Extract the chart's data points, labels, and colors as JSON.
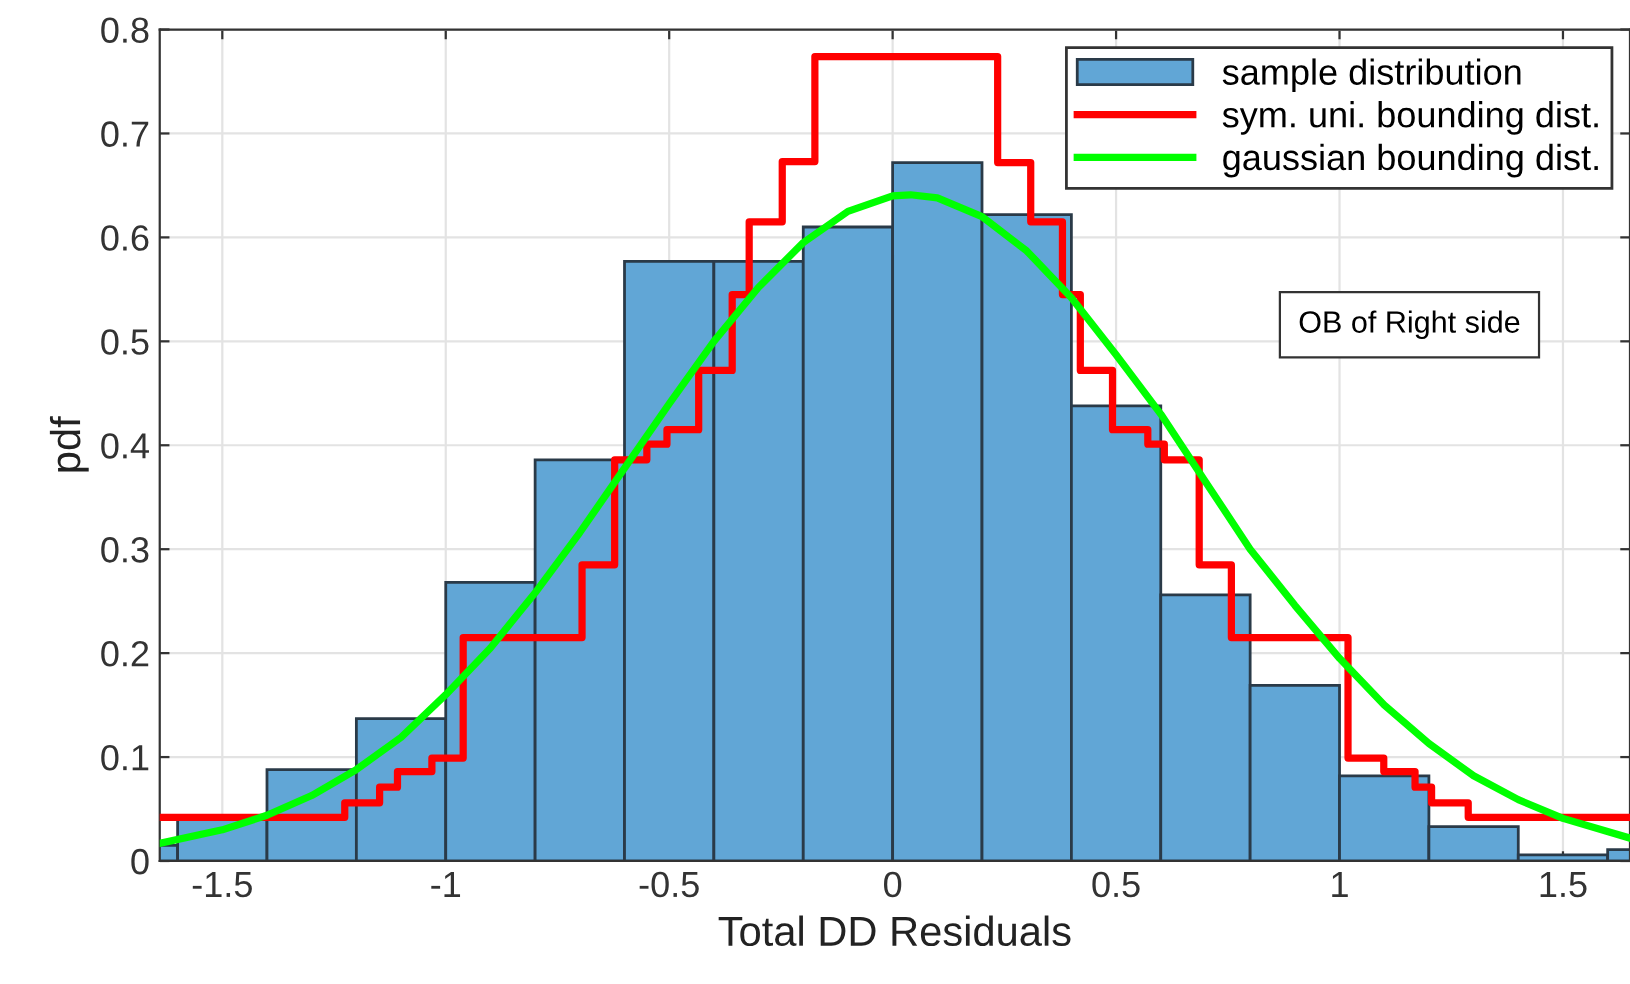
{
  "chart_data": {
    "type": "histogram",
    "xlabel": "Total DD Residuals",
    "ylabel": "pdf",
    "bins": [
      -1.8,
      -1.6,
      -1.4,
      -1.2,
      -1.0,
      -0.8,
      -0.6,
      -0.4,
      -0.2,
      0,
      0.2,
      0.4,
      0.6,
      0.8,
      1.0,
      1.2,
      1.4,
      1.6,
      1.8
    ],
    "series": [
      {
        "name": "sample distribution",
        "color": "#61a6d6",
        "values": [
          0.015,
          0.04,
          0.088,
          0.137,
          0.268,
          0.386,
          0.577,
          0.577,
          0.61,
          0.672,
          0.622,
          0.438,
          0.256,
          0.169,
          0.082,
          0.033,
          0.006,
          0.011
        ]
      },
      {
        "name": "sym. uni. bounding dist.",
        "type": "step",
        "color": "#ff0000",
        "x": [
          -1.64,
          -1.226,
          -1.148,
          -1.108,
          -1.031,
          -0.961,
          -0.695,
          -0.622,
          -0.55,
          -0.505,
          -0.434,
          -0.359,
          -0.321,
          -0.247,
          -0.174,
          0.235,
          0.309,
          0.38,
          0.42,
          0.492,
          0.571,
          0.608,
          0.686,
          0.758,
          1.019,
          1.099,
          1.169,
          1.206,
          1.288,
          1.65
        ],
        "values": [
          0.042,
          0.056,
          0.071,
          0.086,
          0.099,
          0.215,
          0.285,
          0.386,
          0.401,
          0.415,
          0.472,
          0.545,
          0.615,
          0.673,
          0.774,
          0.672,
          0.615,
          0.545,
          0.472,
          0.415,
          0.401,
          0.386,
          0.285,
          0.215,
          0.099,
          0.086,
          0.071,
          0.056,
          0.042,
          0.042
        ]
      },
      {
        "name": "gaussian bounding dist.",
        "type": "line",
        "color": "#00ff00",
        "x": [
          -1.64,
          -1.5,
          -1.4,
          -1.3,
          -1.2,
          -1.1,
          -1.0,
          -0.9,
          -0.8,
          -0.7,
          -0.6,
          -0.5,
          -0.4,
          -0.3,
          -0.2,
          -0.1,
          0.0,
          0.04,
          0.1,
          0.2,
          0.3,
          0.4,
          0.5,
          0.6,
          0.7,
          0.8,
          0.9,
          1.0,
          1.1,
          1.2,
          1.3,
          1.4,
          1.5,
          1.65
        ],
        "values": [
          0.017,
          0.03,
          0.044,
          0.063,
          0.088,
          0.119,
          0.16,
          0.205,
          0.258,
          0.316,
          0.378,
          0.44,
          0.5,
          0.552,
          0.595,
          0.625,
          0.64,
          0.641,
          0.638,
          0.62,
          0.587,
          0.542,
          0.487,
          0.43,
          0.365,
          0.3,
          0.246,
          0.195,
          0.15,
          0.113,
          0.082,
          0.059,
          0.041,
          0.022
        ]
      }
    ],
    "xlim": [
      -1.64,
      1.65
    ],
    "ylim": [
      0,
      0.8
    ],
    "xticks": [
      -1.5,
      -1,
      -0.5,
      0,
      0.5,
      1,
      1.5
    ],
    "yticks": [
      0,
      0.1,
      0.2,
      0.3,
      0.4,
      0.5,
      0.6,
      0.7,
      0.8
    ],
    "grid": true,
    "legend": "top right",
    "annotations": [
      "OB of Right side"
    ]
  }
}
